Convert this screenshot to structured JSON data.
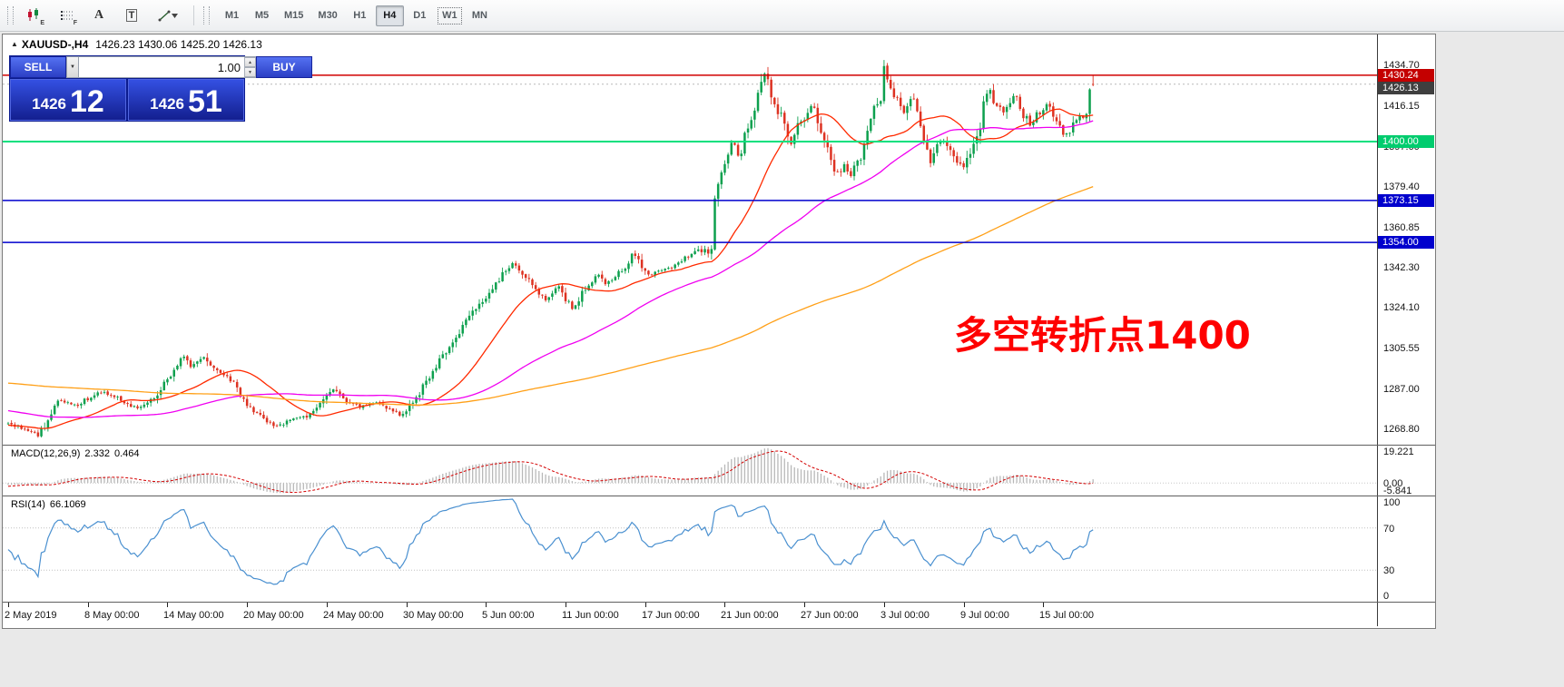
{
  "icons": {
    "caret_up": "▲",
    "caret_down": "▼",
    "dropdown_caret": "▼"
  },
  "toolbar": {
    "tools": {
      "chart_badge": "E",
      "grid_badge": "F",
      "a_label": "A",
      "t_label": "T"
    },
    "timeframes": [
      "M1",
      "M5",
      "M15",
      "M30",
      "H1",
      "H4",
      "D1",
      "W1",
      "MN"
    ],
    "active_timeframe": "H4",
    "focused_timeframe": "W1"
  },
  "chart_header": {
    "collapse_icon": "▲",
    "symbol_period": "XAUUSD-,H4",
    "ohlc": "1426.23 1430.06 1425.20 1426.13"
  },
  "trade_panel": {
    "sell_label": "SELL",
    "buy_label": "BUY",
    "volume": "1.00",
    "bid_prefix": "1426",
    "bid_big": "12",
    "ask_prefix": "1426",
    "ask_big": "51"
  },
  "annotation": {
    "text": "多空转折点1400",
    "color": "#fe0000"
  },
  "chart_data": {
    "type": "candlestick",
    "title": "XAUUSD- H4",
    "bars_total": 328,
    "y_range": [
      1261.8,
      1448.8
    ],
    "y_axis_labels": [
      "1434.70",
      "1416.15",
      "1397.60",
      "1379.40",
      "1360.85",
      "1342.30",
      "1324.10",
      "1305.55",
      "1287.00",
      "1268.80"
    ],
    "x_labels": [
      {
        "bar": 0,
        "label": "2 May 2019"
      },
      {
        "bar": 24,
        "label": "8 May 00:00"
      },
      {
        "bar": 48,
        "label": "14 May 00:00"
      },
      {
        "bar": 72,
        "label": "20 May 00:00"
      },
      {
        "bar": 96,
        "label": "24 May 00:00"
      },
      {
        "bar": 120,
        "label": "30 May 00:00"
      },
      {
        "bar": 144,
        "label": "5 Jun 00:00"
      },
      {
        "bar": 168,
        "label": "11 Jun 00:00"
      },
      {
        "bar": 192,
        "label": "17 Jun 00:00"
      },
      {
        "bar": 216,
        "label": "21 Jun 00:00"
      },
      {
        "bar": 240,
        "label": "27 Jun 00:00"
      },
      {
        "bar": 264,
        "label": "3 Jul 00:00"
      },
      {
        "bar": 288,
        "label": "9 Jul 00:00"
      },
      {
        "bar": 312,
        "label": "15 Jul 00:00"
      }
    ],
    "current_bar": {
      "open": 1426.23,
      "high": 1430.06,
      "low": 1425.2,
      "close": 1426.13
    },
    "candle_colors": {
      "up": "#0da04e",
      "down": "#dd3222"
    },
    "hlines": [
      {
        "price": 1430.24,
        "label": "1430.24",
        "color": "#d00000",
        "badge": "#c40000",
        "width": 1.5
      },
      {
        "price": 1400.0,
        "label": "1400.00",
        "color": "#00e07e",
        "badge": "#00cc6e",
        "width": 2
      },
      {
        "price": 1373.15,
        "label": "1373.15",
        "color": "#0000cd",
        "badge": "#0000cd",
        "width": 1.5
      },
      {
        "price": 1354.0,
        "label": "1354.00",
        "color": "#0000cd",
        "badge": "#0000cd",
        "width": 1.5
      }
    ],
    "bid_line": {
      "price": 1426.13,
      "label": "1426.13",
      "badge": "#3f3f3f",
      "color": "#b8b8b8"
    },
    "moving_averages": [
      {
        "period": 24,
        "color": "#ff2a00"
      },
      {
        "period": 72,
        "color": "#f000f0"
      },
      {
        "period": 190,
        "color": "#ffa018"
      }
    ],
    "macd": {
      "label": "MACD(12,26,9)",
      "value_main": "2.332",
      "value_signal": "0.464",
      "fast": 12,
      "slow": 26,
      "signal_period": 9,
      "range": [
        -7.0,
        20.8
      ],
      "axis_labels": [
        {
          "v": 19.221,
          "t": "19.221"
        },
        {
          "v": 0,
          "t": "0.00"
        },
        {
          "v": -5.841,
          "t": "-5.841"
        }
      ],
      "hist_color": "#b8b8b8",
      "signal_color": "#d40000"
    },
    "rsi": {
      "label": "RSI(14)",
      "value": "66.1069",
      "period": 14,
      "levels": [
        30,
        70
      ],
      "axis_labels": [
        {
          "v": 100,
          "t": "100"
        },
        {
          "v": 70,
          "t": "70"
        },
        {
          "v": 30,
          "t": "30"
        },
        {
          "v": 0,
          "t": "0"
        }
      ],
      "color": "#4a90d0"
    },
    "price_waypoints": [
      [
        -200,
        1291
      ],
      [
        -160,
        1298
      ],
      [
        -130,
        1305
      ],
      [
        -110,
        1300
      ],
      [
        -90,
        1293
      ],
      [
        -70,
        1287
      ],
      [
        -50,
        1281
      ],
      [
        -30,
        1276
      ],
      [
        -14,
        1271
      ],
      [
        -6,
        1268
      ],
      [
        -1,
        1271
      ],
      [
        0,
        1272
      ],
      [
        3,
        1270
      ],
      [
        6,
        1268
      ],
      [
        9,
        1266
      ],
      [
        12,
        1273
      ],
      [
        15,
        1282
      ],
      [
        18,
        1281
      ],
      [
        21,
        1280
      ],
      [
        24,
        1283
      ],
      [
        27,
        1286
      ],
      [
        30,
        1285
      ],
      [
        33,
        1283
      ],
      [
        36,
        1280
      ],
      [
        39,
        1278
      ],
      [
        42,
        1280
      ],
      [
        45,
        1285
      ],
      [
        48,
        1292
      ],
      [
        51,
        1299
      ],
      [
        53,
        1302
      ],
      [
        55,
        1297
      ],
      [
        57,
        1300
      ],
      [
        59,
        1302
      ],
      [
        61,
        1298
      ],
      [
        63,
        1295
      ],
      [
        66,
        1293
      ],
      [
        69,
        1288
      ],
      [
        72,
        1280
      ],
      [
        75,
        1276
      ],
      [
        78,
        1272
      ],
      [
        81,
        1270
      ],
      [
        84,
        1272
      ],
      [
        87,
        1274
      ],
      [
        90,
        1275
      ],
      [
        93,
        1279
      ],
      [
        96,
        1284
      ],
      [
        98,
        1287
      ],
      [
        100,
        1284
      ],
      [
        103,
        1281
      ],
      [
        106,
        1279
      ],
      [
        109,
        1280
      ],
      [
        112,
        1281
      ],
      [
        115,
        1278
      ],
      [
        118,
        1275
      ],
      [
        120,
        1277
      ],
      [
        122,
        1281
      ],
      [
        125,
        1288
      ],
      [
        128,
        1295
      ],
      [
        131,
        1302
      ],
      [
        134,
        1309
      ],
      [
        137,
        1316
      ],
      [
        140,
        1322
      ],
      [
        143,
        1327
      ],
      [
        146,
        1332
      ],
      [
        149,
        1340
      ],
      [
        152,
        1345
      ],
      [
        154,
        1342
      ],
      [
        156,
        1338
      ],
      [
        158,
        1334
      ],
      [
        160,
        1330
      ],
      [
        162,
        1328
      ],
      [
        164,
        1331
      ],
      [
        166,
        1334
      ],
      [
        168,
        1328
      ],
      [
        170,
        1324
      ],
      [
        172,
        1328
      ],
      [
        174,
        1333
      ],
      [
        176,
        1336
      ],
      [
        178,
        1339
      ],
      [
        180,
        1335
      ],
      [
        182,
        1337
      ],
      [
        184,
        1340
      ],
      [
        186,
        1343
      ],
      [
        188,
        1349
      ],
      [
        190,
        1347
      ],
      [
        192,
        1341
      ],
      [
        194,
        1339
      ],
      [
        196,
        1341
      ],
      [
        198,
        1342
      ],
      [
        200,
        1343
      ],
      [
        202,
        1345
      ],
      [
        204,
        1347
      ],
      [
        206,
        1348
      ],
      [
        208,
        1350
      ],
      [
        210,
        1351
      ],
      [
        211,
        1350
      ],
      [
        212,
        1353
      ],
      [
        213,
        1374
      ],
      [
        214,
        1382
      ],
      [
        215,
        1386
      ],
      [
        216,
        1389
      ],
      [
        217,
        1393
      ],
      [
        218,
        1398
      ],
      [
        219,
        1397
      ],
      [
        220,
        1393
      ],
      [
        221,
        1396
      ],
      [
        222,
        1402
      ],
      [
        223,
        1406
      ],
      [
        224,
        1412
      ],
      [
        225,
        1416
      ],
      [
        226,
        1422
      ],
      [
        227,
        1427
      ],
      [
        228,
        1431
      ],
      [
        229,
        1428
      ],
      [
        230,
        1421
      ],
      [
        231,
        1417
      ],
      [
        232,
        1414
      ],
      [
        233,
        1411
      ],
      [
        234,
        1408
      ],
      [
        235,
        1404
      ],
      [
        236,
        1400
      ],
      [
        237,
        1402
      ],
      [
        238,
        1406
      ],
      [
        239,
        1409
      ],
      [
        240,
        1411
      ],
      [
        241,
        1414
      ],
      [
        242,
        1416
      ],
      [
        243,
        1413
      ],
      [
        244,
        1408
      ],
      [
        245,
        1404
      ],
      [
        246,
        1399
      ],
      [
        247,
        1395
      ],
      [
        248,
        1391
      ],
      [
        249,
        1388
      ],
      [
        250,
        1386
      ],
      [
        251,
        1387
      ],
      [
        252,
        1389
      ],
      [
        253,
        1387
      ],
      [
        254,
        1385
      ],
      [
        255,
        1388
      ],
      [
        256,
        1391
      ],
      [
        257,
        1394
      ],
      [
        258,
        1398
      ],
      [
        259,
        1403
      ],
      [
        260,
        1409
      ],
      [
        261,
        1414
      ],
      [
        262,
        1418
      ],
      [
        263,
        1420
      ],
      [
        264,
        1432
      ],
      [
        265,
        1429
      ],
      [
        266,
        1425
      ],
      [
        267,
        1422
      ],
      [
        268,
        1418
      ],
      [
        269,
        1415
      ],
      [
        270,
        1413
      ],
      [
        271,
        1416
      ],
      [
        272,
        1420
      ],
      [
        273,
        1418
      ],
      [
        274,
        1414
      ],
      [
        275,
        1409
      ],
      [
        276,
        1401
      ],
      [
        277,
        1396
      ],
      [
        278,
        1390
      ],
      [
        279,
        1394
      ],
      [
        280,
        1397
      ],
      [
        281,
        1399
      ],
      [
        282,
        1400
      ],
      [
        283,
        1398
      ],
      [
        284,
        1396
      ],
      [
        285,
        1394
      ],
      [
        286,
        1392
      ],
      [
        287,
        1390
      ],
      [
        288,
        1388
      ],
      [
        289,
        1391
      ],
      [
        290,
        1394
      ],
      [
        291,
        1398
      ],
      [
        292,
        1403
      ],
      [
        293,
        1408
      ],
      [
        294,
        1419
      ],
      [
        295,
        1423
      ],
      [
        296,
        1422
      ],
      [
        297,
        1419
      ],
      [
        298,
        1417
      ],
      [
        299,
        1415
      ],
      [
        300,
        1414
      ],
      [
        301,
        1417
      ],
      [
        302,
        1419
      ],
      [
        303,
        1421
      ],
      [
        304,
        1419
      ],
      [
        305,
        1417
      ],
      [
        306,
        1413
      ],
      [
        307,
        1410
      ],
      [
        308,
        1408
      ],
      [
        309,
        1410
      ],
      [
        310,
        1412
      ],
      [
        311,
        1413
      ],
      [
        312,
        1414
      ],
      [
        313,
        1416
      ],
      [
        314,
        1415
      ],
      [
        315,
        1413
      ],
      [
        316,
        1411
      ],
      [
        317,
        1408
      ],
      [
        318,
        1405
      ],
      [
        319,
        1403
      ],
      [
        320,
        1405
      ],
      [
        321,
        1408
      ],
      [
        322,
        1411
      ],
      [
        323,
        1412
      ],
      [
        324,
        1410
      ],
      [
        325,
        1411
      ],
      [
        326,
        1425
      ],
      [
        327,
        1426.13
      ]
    ]
  }
}
